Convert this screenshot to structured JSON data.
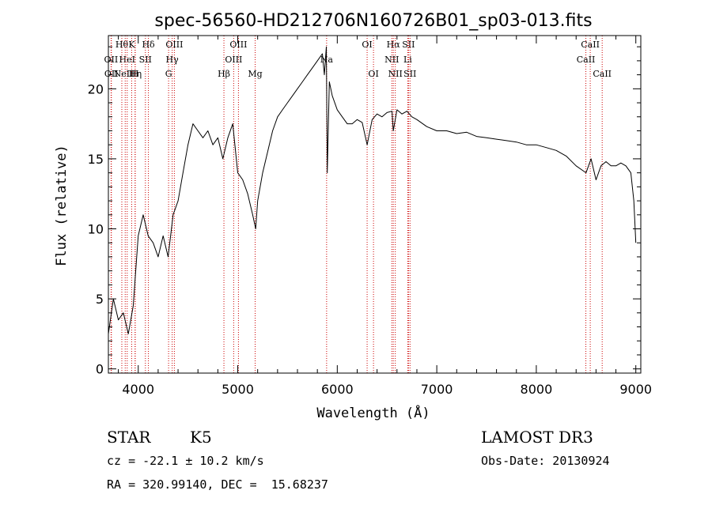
{
  "chart_data": {
    "type": "line",
    "title": "spec-56560-HD212706N160726B01_sp03-013.fits",
    "xlabel": "Wavelength (Å)",
    "ylabel": "Flux (relative)",
    "xlim": [
      3700,
      9050
    ],
    "ylim": [
      -0.3,
      23.8
    ],
    "xticks": [
      4000,
      5000,
      6000,
      7000,
      8000,
      9000
    ],
    "yticks": [
      0,
      5,
      10,
      15,
      20
    ],
    "grid": false,
    "line_color": "#000000",
    "marker_color": "#cc0000",
    "series": [
      {
        "x": [
          3700,
          3750,
          3800,
          3850,
          3900,
          3950,
          4000,
          4050,
          4100,
          4150,
          4200,
          4250,
          4300,
          4350,
          4400,
          4450,
          4500,
          4550,
          4600,
          4650,
          4700,
          4750,
          4800,
          4850,
          4900,
          4950,
          5000,
          5050,
          5100,
          5150,
          5180,
          5200,
          5250,
          5300,
          5350,
          5400,
          5450,
          5500,
          5550,
          5600,
          5650,
          5700,
          5750,
          5800,
          5850,
          5870,
          5890,
          5900,
          5920,
          5950,
          6000,
          6050,
          6100,
          6150,
          6200,
          6250,
          6300,
          6350,
          6400,
          6450,
          6500,
          6550,
          6563,
          6600,
          6650,
          6700,
          6750,
          6800,
          6900,
          7000,
          7100,
          7200,
          7300,
          7400,
          7500,
          7600,
          7700,
          7800,
          7900,
          8000,
          8100,
          8200,
          8300,
          8400,
          8500,
          8550,
          8600,
          8650,
          8700,
          8750,
          8800,
          8850,
          8900,
          8950,
          8980,
          9000
        ],
        "y": [
          2.5,
          5.0,
          3.5,
          4.0,
          2.5,
          4.5,
          9.5,
          11.0,
          9.5,
          9.0,
          8.0,
          9.5,
          8.0,
          11.0,
          12.0,
          14.0,
          16.0,
          17.5,
          17.0,
          16.5,
          17.0,
          16.0,
          16.5,
          15.0,
          16.5,
          17.5,
          14.0,
          13.5,
          12.5,
          11.0,
          10.0,
          12.0,
          14.0,
          15.5,
          17.0,
          18.0,
          18.5,
          19.0,
          19.5,
          20.0,
          20.5,
          21.0,
          21.5,
          22.0,
          22.5,
          21.0,
          23.0,
          14.0,
          20.5,
          19.5,
          18.5,
          18.0,
          17.5,
          17.5,
          17.8,
          17.6,
          16.0,
          17.8,
          18.2,
          18.0,
          18.3,
          18.4,
          17.0,
          18.5,
          18.2,
          18.4,
          18.0,
          17.8,
          17.3,
          17.0,
          17.0,
          16.8,
          16.9,
          16.6,
          16.5,
          16.4,
          16.3,
          16.2,
          16.0,
          16.0,
          15.8,
          15.6,
          15.2,
          14.5,
          14.0,
          15.0,
          13.5,
          14.5,
          14.8,
          14.5,
          14.5,
          14.7,
          14.5,
          14.0,
          12.0,
          9.0
        ]
      }
    ],
    "line_markers": [
      {
        "wl": 3835,
        "label": "Hθ",
        "row": 0
      },
      {
        "wl": 3727,
        "label": "OII",
        "row": 1
      },
      {
        "wl": 3730,
        "label": "OII",
        "row": 2
      },
      {
        "wl": 3889,
        "label": "HeI",
        "row": 1
      },
      {
        "wl": 3869,
        "label": "NeIII",
        "row": 2
      },
      {
        "wl": 3934,
        "label": "K",
        "row": 0
      },
      {
        "wl": 3970,
        "label": "Hη",
        "row": 2
      },
      {
        "wl": 4072,
        "label": "SII",
        "row": 1
      },
      {
        "wl": 3968,
        "label": "H",
        "row": 2
      },
      {
        "wl": 4102,
        "label": "Hδ",
        "row": 0
      },
      {
        "wl": 4363,
        "label": "OIII",
        "row": 0
      },
      {
        "wl": 4341,
        "label": "Hγ",
        "row": 1
      },
      {
        "wl": 4305,
        "label": "G",
        "row": 2
      },
      {
        "wl": 4861,
        "label": "Hβ",
        "row": 2
      },
      {
        "wl": 5007,
        "label": "OIII",
        "row": 0
      },
      {
        "wl": 4959,
        "label": "OIII",
        "row": 1
      },
      {
        "wl": 5175,
        "label": "Mg",
        "row": 2
      },
      {
        "wl": 5893,
        "label": "Na",
        "row": 1
      },
      {
        "wl": 6300,
        "label": "OI",
        "row": 0
      },
      {
        "wl": 6364,
        "label": "OI",
        "row": 2
      },
      {
        "wl": 6563,
        "label": "Hα",
        "row": 0
      },
      {
        "wl": 6548,
        "label": "NII",
        "row": 1
      },
      {
        "wl": 6583,
        "label": "NII",
        "row": 2
      },
      {
        "wl": 6716,
        "label": "SII",
        "row": 0
      },
      {
        "wl": 6708,
        "label": "Li",
        "row": 1
      },
      {
        "wl": 6731,
        "label": "SII",
        "row": 2
      },
      {
        "wl": 8542,
        "label": "CaII",
        "row": 0
      },
      {
        "wl": 8498,
        "label": "CaII",
        "row": 1
      },
      {
        "wl": 8662,
        "label": "CaII",
        "row": 2
      }
    ]
  },
  "info": {
    "class_label": "STAR",
    "subclass": "K5",
    "survey": "LAMOST DR3",
    "cz": "cz = -22.1 ± 10.2 km/s",
    "obs_date": "Obs-Date: 20130924",
    "coords": "RA = 320.99140, DEC =  15.68237"
  }
}
